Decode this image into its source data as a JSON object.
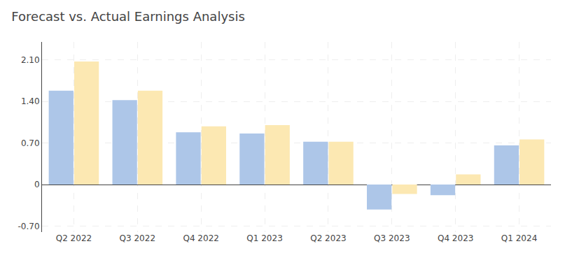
{
  "chart_data": {
    "type": "bar",
    "title": "Forecast vs. Actual Earnings Analysis",
    "categories": [
      "Q2 2022",
      "Q3 2022",
      "Q4 2022",
      "Q1 2023",
      "Q2 2023",
      "Q3 2023",
      "Q4 2023",
      "Q1 2024"
    ],
    "series": [
      {
        "color": "#adc6e8",
        "values": [
          1.58,
          1.42,
          0.88,
          0.86,
          0.72,
          -0.42,
          -0.18,
          0.66
        ]
      },
      {
        "color": "#fce8b2",
        "values": [
          2.07,
          1.58,
          0.98,
          1.0,
          0.72,
          -0.16,
          0.17,
          0.76
        ]
      }
    ],
    "ylim": [
      -0.8,
      2.4
    ],
    "yticks": [
      {
        "value": -0.7,
        "label": "-0.70"
      },
      0,
      {
        "value": 0.7,
        "label": "0.70"
      },
      {
        "value": 1.4,
        "label": "1.40"
      },
      {
        "value": 2.1,
        "label": "2.10"
      }
    ],
    "grid": true
  }
}
